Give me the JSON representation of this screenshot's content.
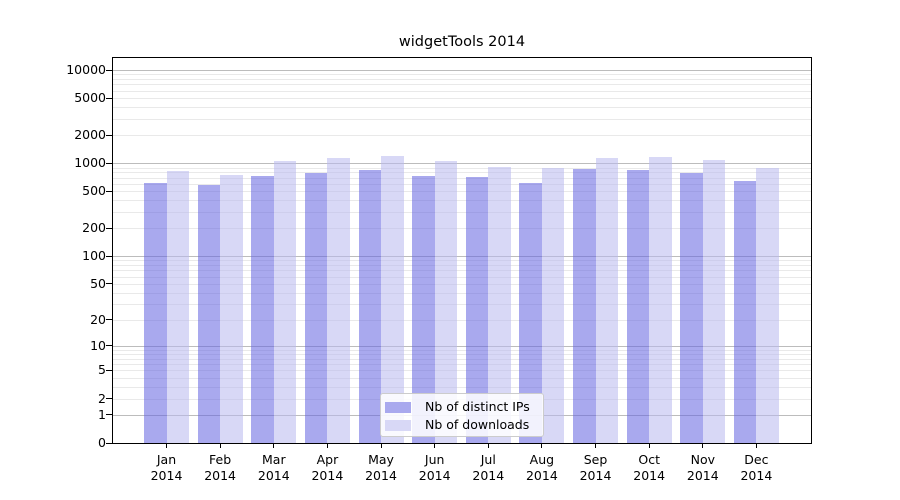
{
  "title": "widgetTools 2014",
  "y_axis": {
    "tick_labels": [
      "10000",
      "5000",
      "2000",
      "1000",
      "500",
      "200",
      "100",
      "50",
      "20",
      "10",
      "5",
      "2",
      "1",
      "0"
    ]
  },
  "x_axis": {
    "months": [
      "Jan",
      "Feb",
      "Mar",
      "Apr",
      "May",
      "Jun",
      "Jul",
      "Aug",
      "Sep",
      "Oct",
      "Nov",
      "Dec"
    ],
    "year": "2014"
  },
  "legend": {
    "items": [
      {
        "label": "Nb of distinct IPs",
        "color": "#a9a9ee"
      },
      {
        "label": "Nb of downloads",
        "color": "#d8d8f6"
      }
    ]
  },
  "colors": {
    "major_grid": "#bcbcbc",
    "minor_grid": "#e9e9e9",
    "axis": "#000000",
    "background": "#ffffff"
  },
  "chart_data": {
    "type": "bar",
    "title": "widgetTools 2014",
    "categories": [
      "Jan 2014",
      "Feb 2014",
      "Mar 2014",
      "Apr 2014",
      "May 2014",
      "Jun 2014",
      "Jul 2014",
      "Aug 2014",
      "Sep 2014",
      "Oct 2014",
      "Nov 2014",
      "Dec 2014"
    ],
    "series": [
      {
        "name": "Nb of distinct IPs",
        "color": "#a9a9ee",
        "values": [
          615,
          585,
          730,
          785,
          845,
          735,
          705,
          620,
          860,
          845,
          780,
          650
        ]
      },
      {
        "name": "Nb of downloads",
        "color": "#d8d8f6",
        "values": [
          830,
          750,
          1050,
          1130,
          1205,
          1055,
          920,
          895,
          1130,
          1160,
          1090,
          880
        ]
      }
    ],
    "xlabel": "",
    "ylabel": "",
    "yscale": "log10(1+x)",
    "ylim": [
      0,
      13000
    ],
    "yticks": [
      0,
      1,
      2,
      5,
      10,
      20,
      50,
      100,
      200,
      500,
      1000,
      2000,
      5000,
      10000
    ],
    "grid": true,
    "legend_position": "bottom-center"
  }
}
